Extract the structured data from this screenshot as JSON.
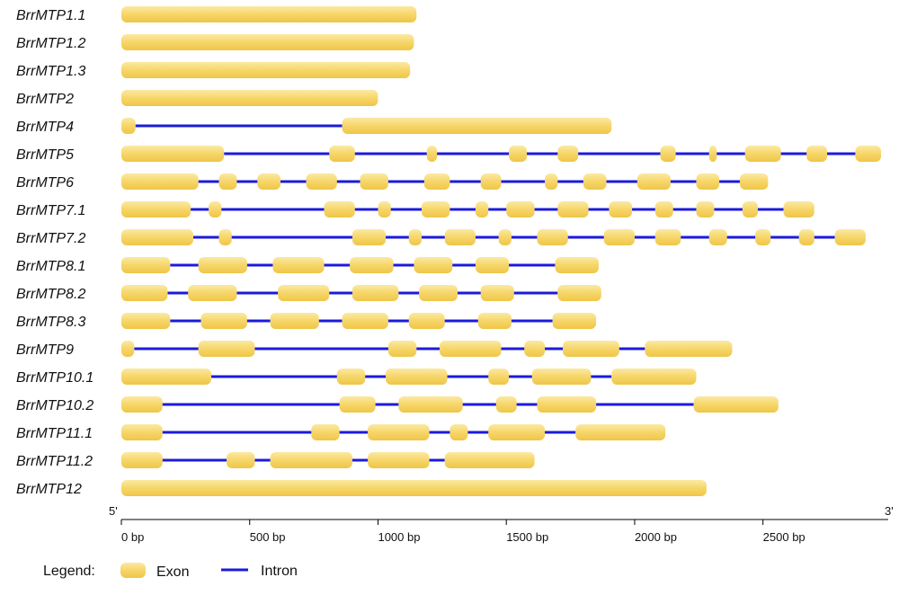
{
  "colors": {
    "exon": "#F5D56A",
    "exon_dark": "#E6BE3A",
    "intron": "#1B1BDB",
    "axis": "#000000"
  },
  "chart_data": {
    "type": "gene-structure",
    "unit": "bp",
    "axis": {
      "start_label": "5'",
      "end_label": "3'",
      "ticks": [
        {
          "value": 0,
          "label": "0 bp"
        },
        {
          "value": 500,
          "label": "500 bp"
        },
        {
          "value": 1000,
          "label": "1000 bp"
        },
        {
          "value": 1500,
          "label": "1500 bp"
        },
        {
          "value": 2000,
          "label": "2000 bp"
        },
        {
          "value": 2500,
          "label": "2500 bp"
        }
      ],
      "range": [
        0,
        2960
      ]
    },
    "genes": [
      {
        "name": "BrrMTP1.1",
        "exons": [
          [
            0,
            1150
          ]
        ]
      },
      {
        "name": "BrrMTP1.2",
        "exons": [
          [
            0,
            1140
          ]
        ]
      },
      {
        "name": "BrrMTP1.3",
        "exons": [
          [
            0,
            1125
          ]
        ]
      },
      {
        "name": "BrrMTP2",
        "exons": [
          [
            0,
            1000
          ]
        ]
      },
      {
        "name": "BrrMTP4",
        "exons": [
          [
            0,
            55
          ],
          [
            860,
            1910
          ]
        ]
      },
      {
        "name": "BrrMTP5",
        "exons": [
          [
            0,
            400
          ],
          [
            810,
            910
          ],
          [
            1190,
            1230
          ],
          [
            1510,
            1580
          ],
          [
            1700,
            1780
          ],
          [
            2100,
            2160
          ],
          [
            2290,
            2320
          ],
          [
            2430,
            2570
          ],
          [
            2670,
            2750
          ],
          [
            2860,
            2960
          ]
        ]
      },
      {
        "name": "BrrMTP6",
        "exons": [
          [
            0,
            300
          ],
          [
            380,
            450
          ],
          [
            530,
            620
          ],
          [
            720,
            840
          ],
          [
            930,
            1040
          ],
          [
            1180,
            1280
          ],
          [
            1400,
            1480
          ],
          [
            1650,
            1700
          ],
          [
            1800,
            1890
          ],
          [
            2010,
            2140
          ],
          [
            2240,
            2330
          ],
          [
            2410,
            2520
          ]
        ]
      },
      {
        "name": "BrrMTP7.1",
        "exons": [
          [
            0,
            270
          ],
          [
            340,
            390
          ],
          [
            790,
            910
          ],
          [
            1000,
            1050
          ],
          [
            1170,
            1280
          ],
          [
            1380,
            1430
          ],
          [
            1500,
            1610
          ],
          [
            1700,
            1820
          ],
          [
            1900,
            1990
          ],
          [
            2080,
            2150
          ],
          [
            2240,
            2310
          ],
          [
            2420,
            2480
          ],
          [
            2580,
            2700
          ]
        ]
      },
      {
        "name": "BrrMTP7.2",
        "exons": [
          [
            0,
            280
          ],
          [
            380,
            430
          ],
          [
            900,
            1030
          ],
          [
            1120,
            1170
          ],
          [
            1260,
            1380
          ],
          [
            1470,
            1520
          ],
          [
            1620,
            1740
          ],
          [
            1880,
            2000
          ],
          [
            2080,
            2180
          ],
          [
            2290,
            2360
          ],
          [
            2470,
            2530
          ],
          [
            2640,
            2700
          ],
          [
            2780,
            2900
          ]
        ]
      },
      {
        "name": "BrrMTP8.1",
        "exons": [
          [
            0,
            190
          ],
          [
            300,
            490
          ],
          [
            590,
            790
          ],
          [
            890,
            1060
          ],
          [
            1140,
            1290
          ],
          [
            1380,
            1510
          ],
          [
            1690,
            1860
          ]
        ]
      },
      {
        "name": "BrrMTP8.2",
        "exons": [
          [
            0,
            180
          ],
          [
            260,
            450
          ],
          [
            610,
            810
          ],
          [
            900,
            1080
          ],
          [
            1160,
            1310
          ],
          [
            1400,
            1530
          ],
          [
            1700,
            1870
          ]
        ]
      },
      {
        "name": "BrrMTP8.3",
        "exons": [
          [
            0,
            190
          ],
          [
            310,
            490
          ],
          [
            580,
            770
          ],
          [
            860,
            1040
          ],
          [
            1120,
            1260
          ],
          [
            1390,
            1520
          ],
          [
            1680,
            1850
          ]
        ]
      },
      {
        "name": "BrrMTP9",
        "exons": [
          [
            0,
            50
          ],
          [
            300,
            520
          ],
          [
            1040,
            1150
          ],
          [
            1240,
            1480
          ],
          [
            1570,
            1650
          ],
          [
            1720,
            1940
          ],
          [
            2040,
            2380
          ]
        ]
      },
      {
        "name": "BrrMTP10.1",
        "exons": [
          [
            0,
            350
          ],
          [
            840,
            950
          ],
          [
            1030,
            1270
          ],
          [
            1430,
            1510
          ],
          [
            1600,
            1830
          ],
          [
            1910,
            2240
          ]
        ]
      },
      {
        "name": "BrrMTP10.2",
        "exons": [
          [
            0,
            160
          ],
          [
            850,
            990
          ],
          [
            1080,
            1330
          ],
          [
            1460,
            1540
          ],
          [
            1620,
            1850
          ],
          [
            2230,
            2560
          ]
        ]
      },
      {
        "name": "BrrMTP11.1",
        "exons": [
          [
            0,
            160
          ],
          [
            740,
            850
          ],
          [
            960,
            1200
          ],
          [
            1280,
            1350
          ],
          [
            1430,
            1650
          ],
          [
            1770,
            2120
          ]
        ]
      },
      {
        "name": "BrrMTP11.2",
        "exons": [
          [
            0,
            160
          ],
          [
            410,
            520
          ],
          [
            580,
            900
          ],
          [
            960,
            1200
          ],
          [
            1260,
            1610
          ]
        ]
      },
      {
        "name": "BrrMTP12",
        "exons": [
          [
            0,
            2280
          ]
        ]
      }
    ]
  },
  "legend": {
    "title": "Legend:",
    "exon_label": "Exon",
    "intron_label": "Intron"
  }
}
